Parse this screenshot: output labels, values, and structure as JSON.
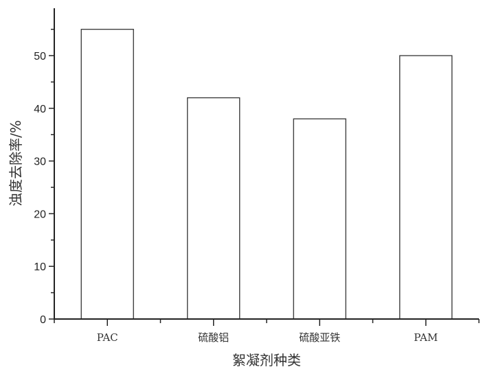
{
  "chart_data": {
    "type": "bar",
    "title": "",
    "xlabel": "絮凝剂种类",
    "ylabel": "浊度去除率/%",
    "categories": [
      "PAC",
      "硫酸铝",
      "硫酸亚铁",
      "PAM"
    ],
    "values": [
      55,
      42,
      38,
      50
    ],
    "ylim": [
      0,
      59
    ],
    "yticks": [
      0,
      10,
      20,
      30,
      40,
      50
    ],
    "grid": false,
    "bar_fill": "#ffffff",
    "bar_stroke": "#333333"
  }
}
